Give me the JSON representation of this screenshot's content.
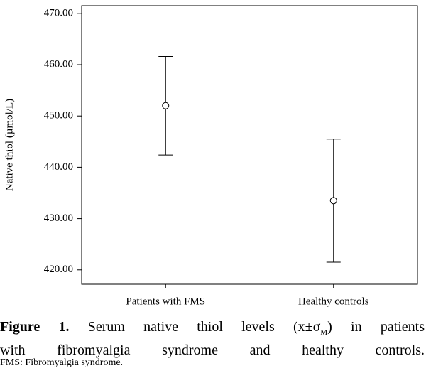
{
  "chart_data": {
    "type": "errorbar",
    "ylabel": "Native thiol (µmol/L)",
    "categories": [
      "Patients with FMS",
      "Healthy controls"
    ],
    "values": [
      452.0,
      433.5
    ],
    "errors": [
      9.6,
      12.0
    ],
    "color": "#000000",
    "ylim": [
      417.2,
      471.5
    ],
    "yticks": [
      {
        "value": 420,
        "label": "420.00"
      },
      {
        "value": 430,
        "label": "430.00"
      },
      {
        "value": 440,
        "label": "440.00"
      },
      {
        "value": 450,
        "label": "450.00"
      },
      {
        "value": 460,
        "label": "460.00"
      },
      {
        "value": 470,
        "label": "470.00"
      }
    ],
    "grid": false
  },
  "caption": {
    "label": "Figure 1.",
    "line1_a": "Serum native thiol levels (x±σ",
    "line1_sub": "M",
    "line1_b": ") in patients",
    "line2": "with fibromyalgia syndrome and healthy controls.",
    "note": "FMS: Fibromyalgia syndrome."
  }
}
